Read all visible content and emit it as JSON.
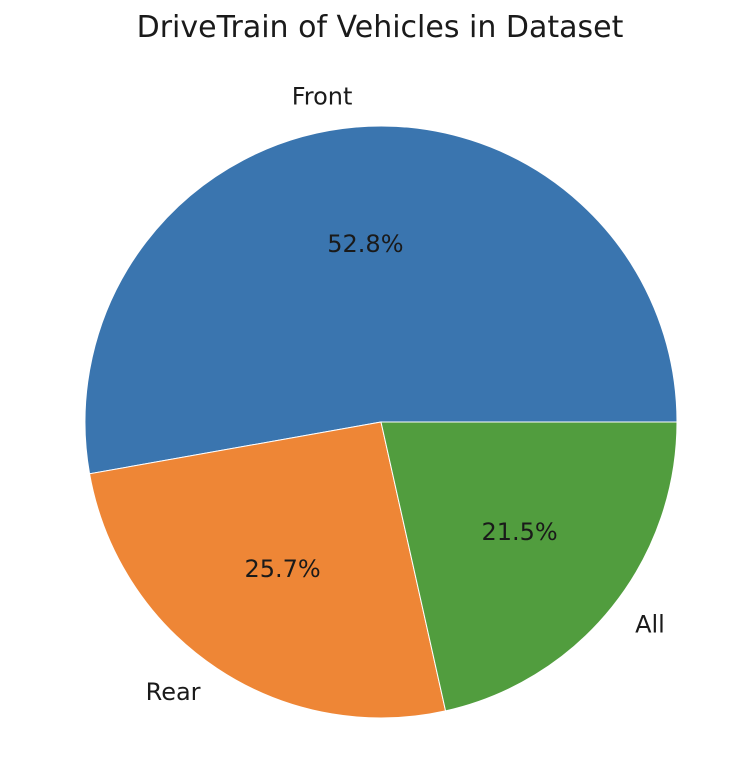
{
  "chart_data": {
    "type": "pie",
    "title": "DriveTrain of Vehicles in Dataset",
    "slices": [
      {
        "label": "Front",
        "value": 52.8,
        "pct_label": "52.8%",
        "color": "#3a75af"
      },
      {
        "label": "Rear",
        "value": 25.7,
        "pct_label": "25.7%",
        "color": "#ee8636"
      },
      {
        "label": "All",
        "value": 21.5,
        "pct_label": "21.5%",
        "color": "#519d3e"
      }
    ],
    "start_angle_deg": 0,
    "direction": "counterclockwise",
    "legend": "none"
  }
}
